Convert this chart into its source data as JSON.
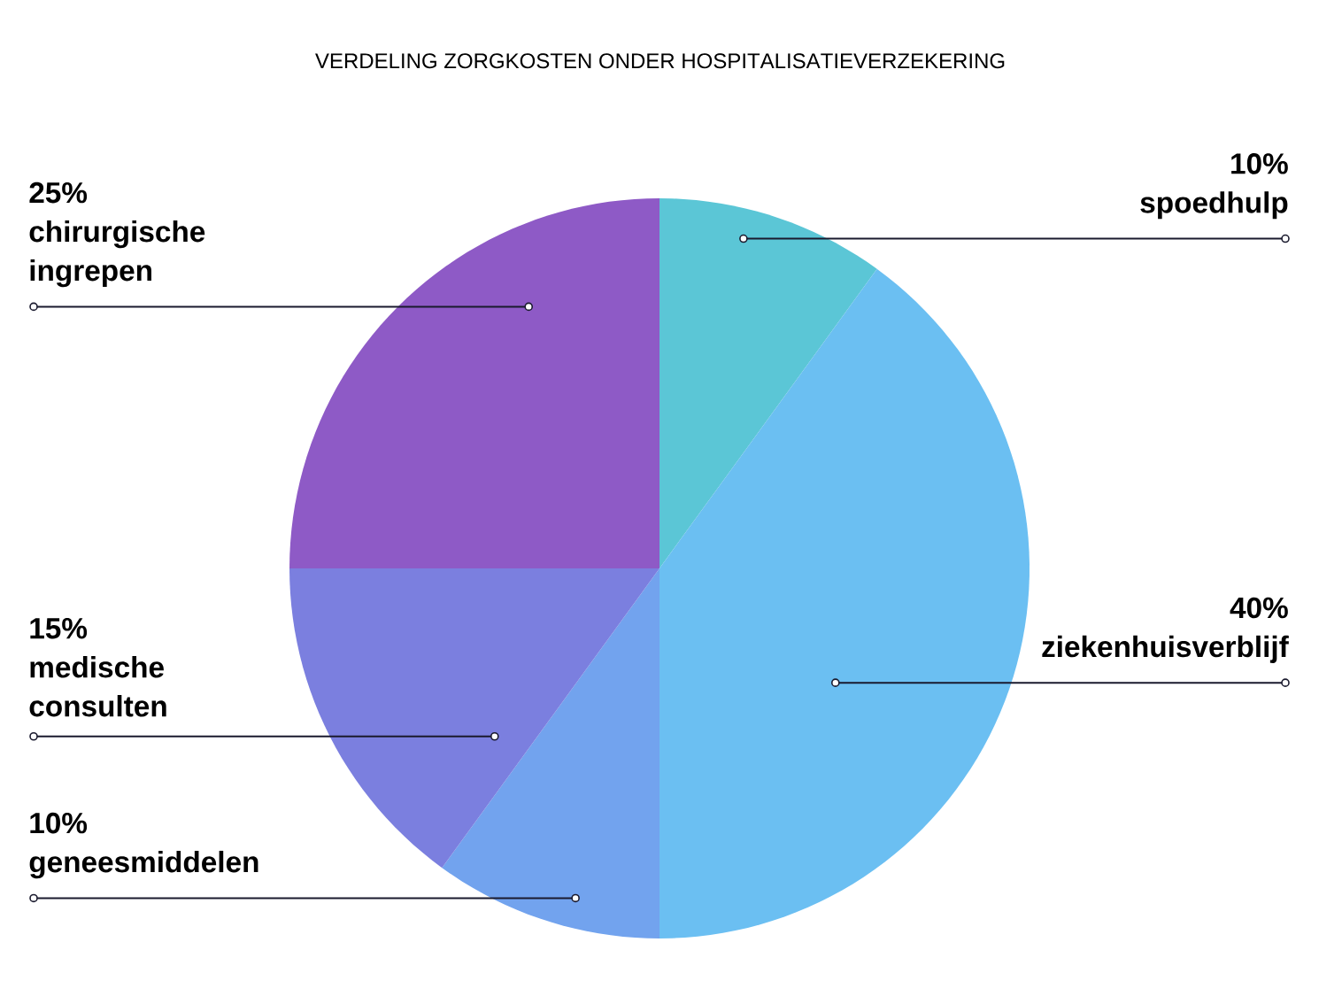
{
  "chart_data": {
    "type": "pie",
    "title": "VERDELING ZORGKOSTEN ONDER HOSPITALISATIEVERZEKERING",
    "categories": [
      "spoedhulp",
      "ziekenhuisverblijf",
      "geneesmiddelen",
      "medische consulten",
      "chirurgische ingrepen"
    ],
    "values": [
      10,
      40,
      10,
      15,
      25
    ],
    "value_labels": [
      "10%",
      "40%",
      "10%",
      "15%",
      "25%"
    ],
    "colors": [
      "#5bc6d6",
      "#6bbff2",
      "#72a3ee",
      "#7b7fdf",
      "#8e5ac6"
    ]
  }
}
